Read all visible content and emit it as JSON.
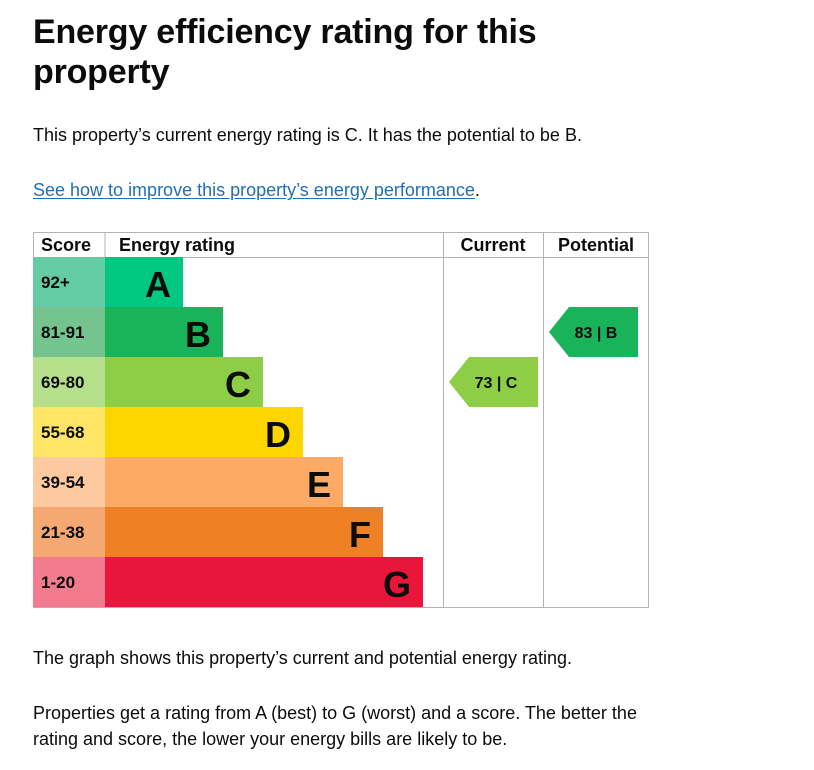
{
  "heading": "Energy efficiency rating for this property",
  "summary": "This property’s current energy rating is C. It has the potential to be B.",
  "link": {
    "text": "See how to improve this property’s energy performance",
    "suffix": "."
  },
  "chart_data": {
    "type": "bar",
    "headers": {
      "score": "Score",
      "rating": "Energy rating",
      "current": "Current",
      "potential": "Potential"
    },
    "bands": [
      {
        "letter": "A",
        "score": "92+",
        "color": "#00c781",
        "score_bg": "#64cba5"
      },
      {
        "letter": "B",
        "score": "81-91",
        "color": "#19b459",
        "score_bg": "#75c38f"
      },
      {
        "letter": "C",
        "score": "69-80",
        "color": "#8dce46",
        "score_bg": "#b5df8a"
      },
      {
        "letter": "D",
        "score": "55-68",
        "color": "#ffd500",
        "score_bg": "#ffe566"
      },
      {
        "letter": "E",
        "score": "39-54",
        "color": "#fcaa65",
        "score_bg": "#fdcaa0"
      },
      {
        "letter": "F",
        "score": "21-38",
        "color": "#ef8023",
        "score_bg": "#f5a871"
      },
      {
        "letter": "G",
        "score": "1-20",
        "color": "#e9153b",
        "score_bg": "#f27b8e"
      }
    ],
    "current": {
      "value": 73,
      "band": "C",
      "label": "73 | C",
      "color": "#8dce46"
    },
    "potential": {
      "value": 83,
      "band": "B",
      "label": "83 | B",
      "color": "#19b459"
    }
  },
  "paragraphs": [
    "The graph shows this property’s current and potential energy rating.",
    "Properties get a rating from A (best) to G (worst) and a score. The better the rating and score, the lower your energy bills are likely to be."
  ]
}
